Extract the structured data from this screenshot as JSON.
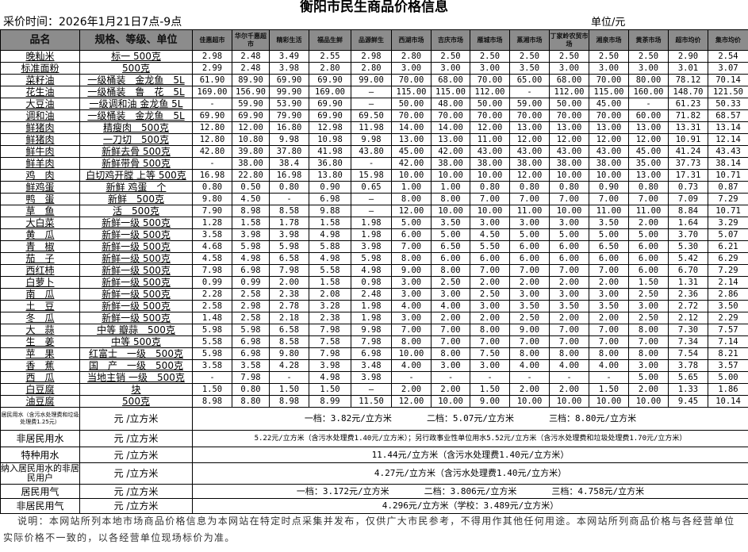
{
  "title": "衡阳市民生商品价格信息",
  "collect_time": "采价时间：2026年1月21日7点-9点",
  "unit": "单位/元",
  "headers": [
    "品名",
    "规格、等级、单位",
    "佳惠超市",
    "华尔千惠超市",
    "精彩生活",
    "福品生鲜",
    "品源鲜生",
    "西湖市场",
    "吉庆市场",
    "雁城市场",
    "蒸湘市场",
    "丁家岭农贸市场",
    "湘泉市场",
    "黄茶市场",
    "超市均价",
    "集市均价"
  ],
  "rows": [
    [
      "晚籼米",
      "标一 500克",
      [
        "2.98",
        "2.48",
        "3.49",
        "2.55",
        "2.98",
        "2.80",
        "2.50",
        "2.50",
        "2.50",
        "2.50",
        "2.50",
        "2.50",
        "2.90",
        "2.54"
      ]
    ],
    [
      "标准面粉",
      "500克",
      [
        "2.99",
        "2.48",
        "3.98",
        "2.80",
        "2.80",
        "3.00",
        "3.00",
        "3.00",
        "3.50",
        "3.00",
        "3.00",
        "3.00",
        "3.01",
        "3.07"
      ]
    ],
    [
      "菜籽油",
      "一级桶装　金龙鱼　5L",
      [
        "61.90",
        "89.90",
        "69.90",
        "69.90",
        "99.00",
        "70.00",
        "68.00",
        "70.00",
        "65.00",
        "68.00",
        "70.00",
        "80.00",
        "78.12",
        "70.14"
      ]
    ],
    [
      "花生油",
      "一级桶装　鲁　花　5L",
      [
        "169.00",
        "156.90",
        "99.90",
        "169.00",
        "—",
        "115.00",
        "115.00",
        "112.00",
        "-",
        "112.00",
        "115.00",
        "160.00",
        "148.70",
        "121.50"
      ]
    ],
    [
      "大豆油",
      "一级调和油 金龙鱼 5L",
      [
        "-",
        "59.90",
        "53.90",
        "69.90",
        "—",
        "50.00",
        "48.00",
        "50.00",
        "59.00",
        "50.00",
        "45.00",
        "-",
        "61.23",
        "50.33"
      ]
    ],
    [
      "调和油",
      "一级桶装　金龙鱼　5L",
      [
        "69.90",
        "69.90",
        "79.90",
        "69.90",
        "69.50",
        "70.00",
        "70.00",
        "70.00",
        "70.00",
        "70.00",
        "70.00",
        "60.00",
        "71.82",
        "68.57"
      ]
    ],
    [
      "鲜猪肉",
      "精瘦肉　500克",
      [
        "12.80",
        "12.00",
        "16.80",
        "12.98",
        "11.98",
        "14.00",
        "14.00",
        "12.00",
        "13.00",
        "13.00",
        "13.00",
        "13.00",
        "13.31",
        "13.14"
      ]
    ],
    [
      "鲜猪肉",
      "一刀切　500克",
      [
        "12.80",
        "10.80",
        "9.98",
        "10.98",
        "9.98",
        "13.00",
        "13.00",
        "11.00",
        "12.00",
        "12.00",
        "12.00",
        "12.00",
        "10.91",
        "12.14"
      ]
    ],
    [
      "鲜牛肉",
      "新鲜去骨 500克",
      [
        "42.80",
        "39.80",
        "37.80",
        "41.98",
        "43.80",
        "45.00",
        "42.00",
        "43.00",
        "43.00",
        "43.00",
        "43.00",
        "45.00",
        "41.24",
        "43.43"
      ]
    ],
    [
      "鲜羊肉",
      "新鲜带骨 500克",
      [
        "-",
        "38.00",
        "38.4",
        "36.80",
        "-",
        "42.00",
        "38.00",
        "38.00",
        "38.00",
        "38.00",
        "38.00",
        "35.00",
        "37.73",
        "38.14"
      ]
    ],
    [
      "鸡　肉",
      "白切鸡开膛 上等 500克",
      [
        "16.98",
        "22.80",
        "16.98",
        "13.80",
        "15.98",
        "10.00",
        "10.00",
        "10.00",
        "12.00",
        "10.00",
        "10.00",
        "13.00",
        "17.31",
        "10.71"
      ]
    ],
    [
      "鲜鸡蛋",
      "新鲜 鸡蛋　个",
      [
        "0.80",
        "0.50",
        "0.80",
        "0.90",
        "0.65",
        "1.00",
        "1.00",
        "0.80",
        "0.80",
        "0.80",
        "0.90",
        "0.80",
        "0.73",
        "0.87"
      ]
    ],
    [
      "鸭　蛋",
      "新鲜　500克",
      [
        "9.80",
        "4.50",
        "-",
        "6.98",
        "—",
        "8.00",
        "8.00",
        "7.00",
        "7.00",
        "7.00",
        "7.00",
        "7.00",
        "7.09",
        "7.29"
      ]
    ],
    [
      "草　鱼",
      "活　500克",
      [
        "7.90",
        "8.98",
        "8.58",
        "9.88",
        "—",
        "12.00",
        "10.00",
        "10.00",
        "11.00",
        "10.00",
        "11.00",
        "11.00",
        "8.84",
        "10.71"
      ]
    ],
    [
      "大白菜",
      "新鲜一级 500克",
      [
        "1.28",
        "1.58",
        "1.78",
        "1.58",
        "1.98",
        "5.00",
        "3.50",
        "3.00",
        "3.00",
        "3.00",
        "3.50",
        "2.00",
        "1.64",
        "3.29"
      ]
    ],
    [
      "黄　瓜",
      "新鲜一级 500克",
      [
        "3.58",
        "3.98",
        "3.98",
        "4.98",
        "1.98",
        "6.00",
        "5.00",
        "4.50",
        "5.00",
        "5.00",
        "5.00",
        "5.00",
        "3.70",
        "5.07"
      ]
    ],
    [
      "青　椒",
      "新鲜一级 500克",
      [
        "4.68",
        "5.98",
        "5.98",
        "5.88",
        "3.98",
        "7.00",
        "6.50",
        "5.50",
        "6.00",
        "6.00",
        "6.50",
        "6.00",
        "5.30",
        "6.21"
      ]
    ],
    [
      "茄　子",
      "新鲜一级 500克",
      [
        "4.58",
        "4.98",
        "6.58",
        "4.98",
        "5.98",
        "8.00",
        "6.00",
        "6.00",
        "6.00",
        "6.00",
        "6.00",
        "6.00",
        "5.42",
        "6.29"
      ]
    ],
    [
      "西红柿",
      "新鲜一级 500克",
      [
        "7.98",
        "6.98",
        "7.98",
        "5.58",
        "4.98",
        "9.00",
        "8.00",
        "7.00",
        "7.00",
        "7.00",
        "7.00",
        "6.00",
        "6.70",
        "7.29"
      ]
    ],
    [
      "白萝卜",
      "新鲜一级 500克",
      [
        "0.99",
        "0.99",
        "2.00",
        "1.58",
        "0.98",
        "3.00",
        "2.50",
        "2.00",
        "2.00",
        "2.00",
        "2.00",
        "1.50",
        "1.31",
        "2.14"
      ]
    ],
    [
      "南　瓜",
      "新鲜一级 500克",
      [
        "2.28",
        "2.58",
        "2.38",
        "2.08",
        "2.48",
        "3.00",
        "3.00",
        "2.50",
        "3.00",
        "3.00",
        "3.00",
        "2.50",
        "2.36",
        "2.86"
      ]
    ],
    [
      "土　豆",
      "新鲜一级 500克",
      [
        "2.58",
        "2.98",
        "2.78",
        "3.28",
        "1.98",
        "4.00",
        "4.00",
        "3.00",
        "3.50",
        "3.50",
        "3.50",
        "3.00",
        "2.72",
        "3.50"
      ]
    ],
    [
      "冬　瓜",
      "新鲜一级 500克",
      [
        "1.48",
        "2.58",
        "2.18",
        "2.38",
        "1.98",
        "3.00",
        "2.00",
        "2.00",
        "2.50",
        "2.00",
        "2.00",
        "2.50",
        "2.12",
        "2.29"
      ]
    ],
    [
      "大　蒜",
      "中等 瓣蒜　500克",
      [
        "5.98",
        "5.98",
        "6.58",
        "7.98",
        "9.98",
        "7.00",
        "7.00",
        "8.00",
        "9.00",
        "7.00",
        "7.00",
        "8.00",
        "7.30",
        "7.57"
      ]
    ],
    [
      "生　姜",
      "中等 500克",
      [
        "5.58",
        "6.98",
        "8.58",
        "7.58",
        "7.98",
        "8.00",
        "7.00",
        "7.00",
        "7.00",
        "7.00",
        "7.00",
        "7.00",
        "7.34",
        "7.14"
      ]
    ],
    [
      "苹　果",
      "红富士　一级　500克",
      [
        "5.98",
        "6.98",
        "9.80",
        "7.98",
        "6.98",
        "10.00",
        "8.00",
        "7.50",
        "8.00",
        "8.00",
        "8.00",
        "8.00",
        "7.54",
        "8.21"
      ]
    ],
    [
      "香　蕉",
      "国　产　一级　500克",
      [
        "3.58",
        "3.58",
        "4.28",
        "3.98",
        "3.48",
        "4.00",
        "3.00",
        "3.00",
        "4.00",
        "4.00",
        "4.00",
        "3.00",
        "3.78",
        "3.57"
      ]
    ],
    [
      "西　瓜",
      "当地主销 一级　500克",
      [
        "-",
        "7.98",
        "-",
        "4.98",
        "3.98",
        "-",
        "-",
        "-",
        "-",
        "-",
        "-",
        "5.00",
        "5.65",
        "5.00"
      ]
    ],
    [
      "白豆腐",
      "块",
      [
        "1.50",
        "0.80",
        "1.50",
        "1.50",
        "—",
        "2.00",
        "2.00",
        "1.50",
        "2.00",
        "2.00",
        "1.50",
        "2.00",
        "1.33",
        "1.86"
      ]
    ],
    [
      "油豆腐",
      "500克",
      [
        "8.98",
        "8.80",
        "8.98",
        "8.99",
        "11.50",
        "12.00",
        "10.00",
        "9.00",
        "10.00",
        "10.00",
        "10.00",
        "10.00",
        "9.45",
        "10.14"
      ]
    ]
  ],
  "utilities": [
    {
      "name": "居民用水（含污水处理费和垃圾处理费1.25元）",
      "unit": "元 /立方米",
      "parts": [
        "一档：3.82元/立方米",
        "二档：5.07元/立方米",
        "三档：8.80元/立方米"
      ]
    },
    {
      "name": "非居民用水",
      "unit": "元 /立方米",
      "parts": [
        "5.22元/立方米（含污水处理费1.40元/立方米）；另行政事业性单位用水5.52元/立方米（含污水处理费和垃圾处理费1.70元/立方米）"
      ]
    },
    {
      "name": "特种用水",
      "unit": "元 /立方米",
      "parts": [
        "11.44元/立方米（含污水处理费1.40元/立方米）"
      ]
    },
    {
      "name": "纳入居民用水的非居民用户",
      "unit": "元 /立方米",
      "parts": [
        "4.27元/立方米（含污水处理费1.40元/立方米）"
      ]
    },
    {
      "name": "居民用气",
      "unit": "元 /立方米",
      "parts": [
        "一档：3.172元/立方米",
        "二档：3.806元/立方米",
        "三档：4.758元/立方米"
      ]
    },
    {
      "name": "非居民用气",
      "unit": "元 /立方米",
      "parts": [
        "4.296元/立方米（学校：3.489元/立方米）"
      ]
    }
  ],
  "note": "说明：本网站所列本地市场商品价格信息为本网站在特定时点采集并发布，仅供广大市民参考，不得用作其他任何用途。本网站所列商品价格与各经营单位实际价格不一致的，以各经营单位现场标价为准。",
  "colors": {
    "header_bg": "#8c8c8c"
  }
}
